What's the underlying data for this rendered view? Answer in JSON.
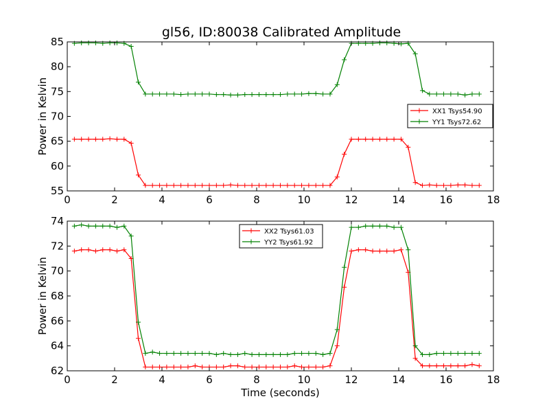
{
  "title": "gl56, ID:80038 Calibrated Amplitude",
  "colors": {
    "red": "#ff0000",
    "green": "#008000",
    "frame": "#000000"
  },
  "chart_data": [
    {
      "type": "line",
      "title": "gl56, ID:80038 Calibrated Amplitude",
      "xlabel": "",
      "ylabel": "Power in Kelvin",
      "xlim": [
        0,
        18
      ],
      "ylim": [
        55,
        85
      ],
      "xticks": [
        "0",
        "2",
        "4",
        "6",
        "8",
        "10",
        "12",
        "14",
        "16",
        "18"
      ],
      "yticks": [
        "55",
        "60",
        "65",
        "70",
        "75",
        "80",
        "85"
      ],
      "grid": false,
      "legend_position": "center-right",
      "x": [
        0.3,
        0.6,
        0.9,
        1.2,
        1.5,
        1.8,
        2.1,
        2.4,
        2.7,
        3.0,
        3.3,
        3.6,
        3.9,
        4.2,
        4.5,
        4.8,
        5.1,
        5.4,
        5.7,
        6.0,
        6.3,
        6.6,
        6.9,
        7.2,
        7.5,
        7.8,
        8.1,
        8.4,
        8.7,
        9.0,
        9.3,
        9.6,
        9.9,
        10.2,
        10.5,
        10.8,
        11.1,
        11.4,
        11.7,
        12.0,
        12.3,
        12.6,
        12.9,
        13.2,
        13.5,
        13.8,
        14.1,
        14.4,
        14.7,
        15.0,
        15.3,
        15.6,
        15.9,
        16.2,
        16.5,
        16.8,
        17.1,
        17.4
      ],
      "series": [
        {
          "name": "XX1 Tsys54.90",
          "color": "#ff0000",
          "values": [
            65.4,
            65.4,
            65.4,
            65.4,
            65.4,
            65.5,
            65.4,
            65.4,
            64.6,
            58.2,
            56.1,
            56.1,
            56.1,
            56.1,
            56.1,
            56.1,
            56.1,
            56.1,
            56.1,
            56.1,
            56.1,
            56.1,
            56.2,
            56.1,
            56.1,
            56.1,
            56.1,
            56.1,
            56.1,
            56.1,
            56.1,
            56.1,
            56.1,
            56.1,
            56.1,
            56.1,
            56.1,
            57.8,
            62.4,
            65.4,
            65.4,
            65.4,
            65.4,
            65.4,
            65.4,
            65.4,
            65.4,
            63.8,
            56.7,
            56.1,
            56.2,
            56.1,
            56.1,
            56.1,
            56.2,
            56.2,
            56.1,
            56.1
          ]
        },
        {
          "name": "YY1 Tsys72.62",
          "color": "#008000",
          "values": [
            84.7,
            84.8,
            84.8,
            84.8,
            84.7,
            84.8,
            84.8,
            84.7,
            84.1,
            76.9,
            74.5,
            74.5,
            74.5,
            74.5,
            74.5,
            74.4,
            74.5,
            74.5,
            74.5,
            74.5,
            74.4,
            74.4,
            74.3,
            74.3,
            74.4,
            74.4,
            74.4,
            74.4,
            74.4,
            74.4,
            74.5,
            74.5,
            74.5,
            74.6,
            74.6,
            74.5,
            74.5,
            76.4,
            81.4,
            84.7,
            84.7,
            84.7,
            84.7,
            84.8,
            84.8,
            84.7,
            84.6,
            84.7,
            82.6,
            75.2,
            74.5,
            74.5,
            74.5,
            74.5,
            74.5,
            74.3,
            74.5,
            74.5
          ]
        }
      ]
    },
    {
      "type": "line",
      "title": "",
      "xlabel": "Time (seconds)",
      "ylabel": "Power in Kelvin",
      "xlim": [
        0,
        18
      ],
      "ylim": [
        62,
        74
      ],
      "xticks": [
        "0",
        "2",
        "4",
        "6",
        "8",
        "10",
        "12",
        "14",
        "16",
        "18"
      ],
      "yticks": [
        "62",
        "64",
        "66",
        "68",
        "70",
        "72",
        "74"
      ],
      "grid": false,
      "legend_position": "top-center",
      "x": [
        0.3,
        0.6,
        0.9,
        1.2,
        1.5,
        1.8,
        2.1,
        2.4,
        2.7,
        3.0,
        3.3,
        3.6,
        3.9,
        4.2,
        4.5,
        4.8,
        5.1,
        5.4,
        5.7,
        6.0,
        6.3,
        6.6,
        6.9,
        7.2,
        7.5,
        7.8,
        8.1,
        8.4,
        8.7,
        9.0,
        9.3,
        9.6,
        9.9,
        10.2,
        10.5,
        10.8,
        11.1,
        11.4,
        11.7,
        12.0,
        12.3,
        12.6,
        12.9,
        13.2,
        13.5,
        13.8,
        14.1,
        14.4,
        14.7,
        15.0,
        15.3,
        15.6,
        15.9,
        16.2,
        16.5,
        16.8,
        17.1,
        17.4
      ],
      "series": [
        {
          "name": "XX2 Tsys61.03",
          "color": "#ff0000",
          "values": [
            71.6,
            71.7,
            71.7,
            71.6,
            71.7,
            71.7,
            71.6,
            71.7,
            71.0,
            64.6,
            62.3,
            62.3,
            62.3,
            62.3,
            62.3,
            62.3,
            62.3,
            62.4,
            62.3,
            62.3,
            62.3,
            62.3,
            62.4,
            62.4,
            62.3,
            62.3,
            62.3,
            62.3,
            62.3,
            62.3,
            62.3,
            62.4,
            62.3,
            62.3,
            62.3,
            62.3,
            62.4,
            64.0,
            68.7,
            71.6,
            71.7,
            71.7,
            71.6,
            71.6,
            71.6,
            71.6,
            71.7,
            69.9,
            63.0,
            62.4,
            62.4,
            62.4,
            62.4,
            62.4,
            62.4,
            62.4,
            62.5,
            62.4
          ]
        },
        {
          "name": "YY2 Tsys61.92",
          "color": "#008000",
          "values": [
            73.6,
            73.7,
            73.6,
            73.6,
            73.6,
            73.6,
            73.5,
            73.6,
            72.8,
            65.9,
            63.4,
            63.5,
            63.4,
            63.4,
            63.4,
            63.4,
            63.4,
            63.4,
            63.4,
            63.4,
            63.3,
            63.4,
            63.3,
            63.3,
            63.4,
            63.3,
            63.3,
            63.3,
            63.3,
            63.3,
            63.3,
            63.4,
            63.4,
            63.4,
            63.4,
            63.3,
            63.4,
            65.3,
            70.3,
            73.5,
            73.5,
            73.6,
            73.6,
            73.6,
            73.6,
            73.5,
            73.5,
            71.7,
            64.0,
            63.3,
            63.3,
            63.4,
            63.4,
            63.4,
            63.4,
            63.4,
            63.4,
            63.4
          ]
        }
      ]
    }
  ]
}
